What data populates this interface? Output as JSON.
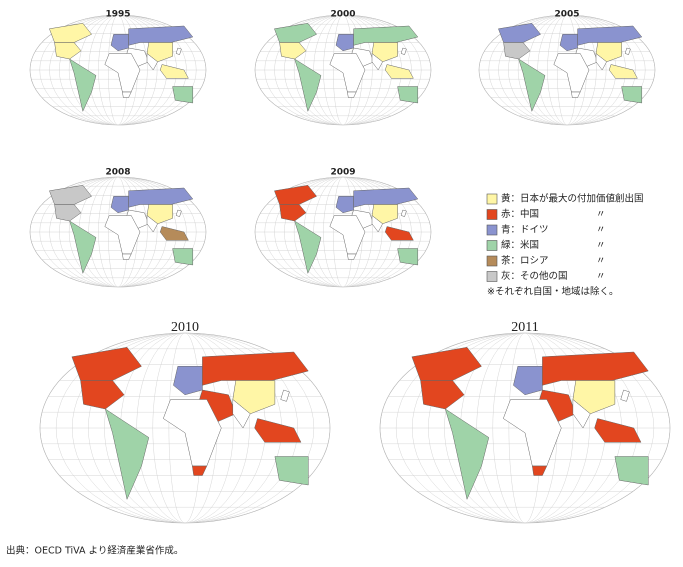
{
  "maps": [
    {
      "year": "1995"
    },
    {
      "year": "2000"
    },
    {
      "year": "2005"
    },
    {
      "year": "2008"
    },
    {
      "year": "2009"
    },
    {
      "year": "2010"
    },
    {
      "year": "2011"
    }
  ],
  "legend": {
    "items": [
      {
        "label": "黄：日本が最大の付加価値創出国",
        "color": "#fff6a6"
      },
      {
        "label": "赤：中国",
        "color": "#e2461f",
        "ditto": "〃"
      },
      {
        "label": "青：ドイツ",
        "color": "#8a93cf",
        "ditto": "〃"
      },
      {
        "label": "緑：米国",
        "color": "#9fd3a8",
        "ditto": "〃"
      },
      {
        "label": "茶：ロシア",
        "color": "#b58b5a",
        "ditto": "〃"
      },
      {
        "label": "灰：その他の国",
        "color": "#c8c8c8",
        "ditto": "〃"
      }
    ],
    "note": "※それぞれ自国・地域は除く。"
  },
  "source": "出典：OECD TiVA より経済産業省作成。"
}
